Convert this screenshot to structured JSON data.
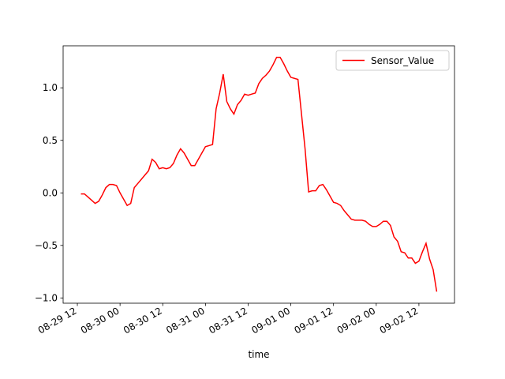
{
  "chart_data": {
    "type": "line",
    "x_label": "time",
    "x": [
      "08-29 13",
      "08-29 14",
      "08-29 15",
      "08-29 16",
      "08-29 17",
      "08-29 18",
      "08-29 19",
      "08-29 20",
      "08-29 21",
      "08-29 22",
      "08-29 23",
      "08-30 00",
      "08-30 01",
      "08-30 02",
      "08-30 03",
      "08-30 04",
      "08-30 05",
      "08-30 06",
      "08-30 07",
      "08-30 08",
      "08-30 09",
      "08-30 10",
      "08-30 11",
      "08-30 12",
      "08-30 13",
      "08-30 14",
      "08-30 15",
      "08-30 16",
      "08-30 17",
      "08-30 18",
      "08-30 19",
      "08-30 20",
      "08-30 21",
      "08-30 22",
      "08-30 23",
      "08-31 00",
      "08-31 01",
      "08-31 02",
      "08-31 03",
      "08-31 04",
      "08-31 05",
      "08-31 06",
      "08-31 07",
      "08-31 08",
      "08-31 09",
      "08-31 10",
      "08-31 11",
      "08-31 12",
      "08-31 13",
      "08-31 14",
      "08-31 15",
      "08-31 16",
      "08-31 17",
      "08-31 18",
      "08-31 19",
      "08-31 20",
      "08-31 21",
      "08-31 22",
      "08-31 23",
      "09-01 00",
      "09-01 01",
      "09-01 02",
      "09-01 03",
      "09-01 04",
      "09-01 05",
      "09-01 06",
      "09-01 07",
      "09-01 08",
      "09-01 09",
      "09-01 10",
      "09-01 11",
      "09-01 12",
      "09-01 13",
      "09-01 14",
      "09-01 15",
      "09-01 16",
      "09-01 17",
      "09-01 18",
      "09-01 19",
      "09-01 20",
      "09-01 21",
      "09-01 22",
      "09-01 23",
      "09-02 00",
      "09-02 01",
      "09-02 02",
      "09-02 03",
      "09-02 04",
      "09-02 05",
      "09-02 06",
      "09-02 07",
      "09-02 08",
      "09-02 09",
      "09-02 10",
      "09-02 11",
      "09-02 12",
      "09-02 13",
      "09-02 14",
      "09-02 15",
      "09-02 16",
      "09-02 17"
    ],
    "series": [
      {
        "name": "Sensor_Value",
        "color": "#ff0000",
        "values": [
          -0.01,
          -0.01,
          -0.04,
          -0.07,
          -0.1,
          -0.08,
          -0.02,
          0.05,
          0.08,
          0.08,
          0.07,
          0.0,
          -0.06,
          -0.12,
          -0.1,
          0.05,
          0.09,
          0.13,
          0.17,
          0.21,
          0.32,
          0.29,
          0.23,
          0.24,
          0.23,
          0.24,
          0.28,
          0.36,
          0.42,
          0.38,
          0.32,
          0.26,
          0.26,
          0.32,
          0.38,
          0.44,
          0.45,
          0.46,
          0.8,
          0.95,
          1.13,
          0.87,
          0.8,
          0.75,
          0.84,
          0.88,
          0.94,
          0.93,
          0.94,
          0.95,
          1.04,
          1.09,
          1.12,
          1.16,
          1.22,
          1.29,
          1.29,
          1.23,
          1.16,
          1.1,
          1.09,
          1.08,
          0.75,
          0.42,
          0.01,
          0.02,
          0.02,
          0.07,
          0.08,
          0.03,
          -0.03,
          -0.09,
          -0.1,
          -0.12,
          -0.17,
          -0.21,
          -0.25,
          -0.26,
          -0.26,
          -0.26,
          -0.27,
          -0.3,
          -0.32,
          -0.32,
          -0.3,
          -0.27,
          -0.27,
          -0.31,
          -0.42,
          -0.46,
          -0.56,
          -0.57,
          -0.62,
          -0.62,
          -0.67,
          -0.65,
          -0.56,
          -0.48,
          -0.63,
          -0.73,
          -0.94
        ]
      }
    ],
    "xlim": [
      "08-29 08",
      "09-02 22"
    ],
    "xticks": [
      "08-29 12",
      "08-30 00",
      "08-30 12",
      "08-31 00",
      "08-31 12",
      "09-01 00",
      "09-01 12",
      "09-02 00",
      "09-02 12"
    ],
    "ylim": [
      -1.05,
      1.4
    ],
    "yticks": [
      {
        "value": -1,
        "label": "−1.0"
      },
      {
        "value": -0.5,
        "label": "−0.5"
      },
      {
        "value": 0,
        "label": "0.0"
      },
      {
        "value": 0.5,
        "label": "0.5"
      },
      {
        "value": 1,
        "label": "1.0"
      }
    ],
    "legend": "upper right"
  }
}
